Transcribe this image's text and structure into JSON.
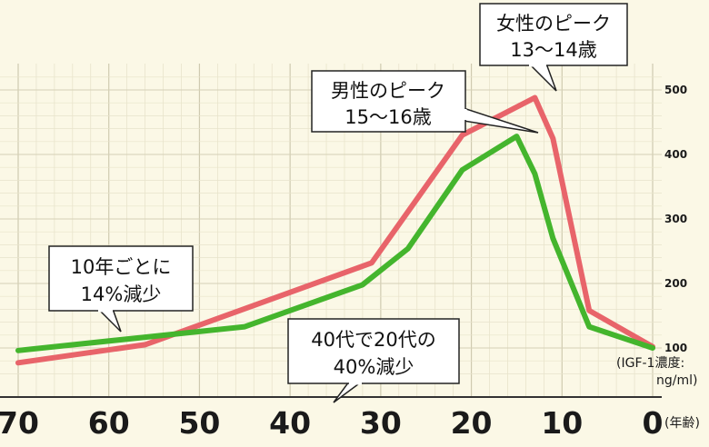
{
  "chart_data": {
    "type": "line",
    "x_axis": {
      "reversed": true,
      "range": [
        70,
        0
      ],
      "ticks": [
        "70",
        "60",
        "50",
        "40",
        "30",
        "20",
        "10",
        "0"
      ],
      "unit_label": "(年齢)"
    },
    "y_axis": {
      "position": "right",
      "range": [
        50,
        550
      ],
      "ticks": [
        "500",
        "400",
        "300",
        "200",
        "100"
      ],
      "unit_label_line1": "(IGF-1濃度:",
      "unit_label_line2": "ng/ml)"
    },
    "grid": true,
    "series": [
      {
        "key": "female",
        "color": "#e8646a",
        "points": [
          [
            70,
            77
          ],
          [
            56,
            105
          ],
          [
            31,
            232
          ],
          [
            21,
            430
          ],
          [
            13,
            488
          ],
          [
            11,
            425
          ],
          [
            7,
            158
          ],
          [
            0,
            102
          ]
        ]
      },
      {
        "key": "male",
        "color": "#44b52d",
        "points": [
          [
            70,
            96
          ],
          [
            45,
            133
          ],
          [
            32,
            198
          ],
          [
            27,
            254
          ],
          [
            21,
            376
          ],
          [
            15,
            428
          ],
          [
            13,
            370
          ],
          [
            11,
            270
          ],
          [
            7,
            133
          ],
          [
            0,
            100
          ]
        ]
      }
    ],
    "annotations": [
      {
        "key": "female_peak",
        "lines": [
          "女性のピーク",
          "13〜14歳"
        ]
      },
      {
        "key": "male_peak",
        "lines": [
          "男性のピーク",
          "15〜16歳"
        ]
      },
      {
        "key": "decline_per_decade",
        "lines": [
          "10年ごとに",
          "14%減少"
        ]
      },
      {
        "key": "decline_40s",
        "lines": [
          "40代で20代の",
          "40%減少"
        ]
      }
    ]
  }
}
